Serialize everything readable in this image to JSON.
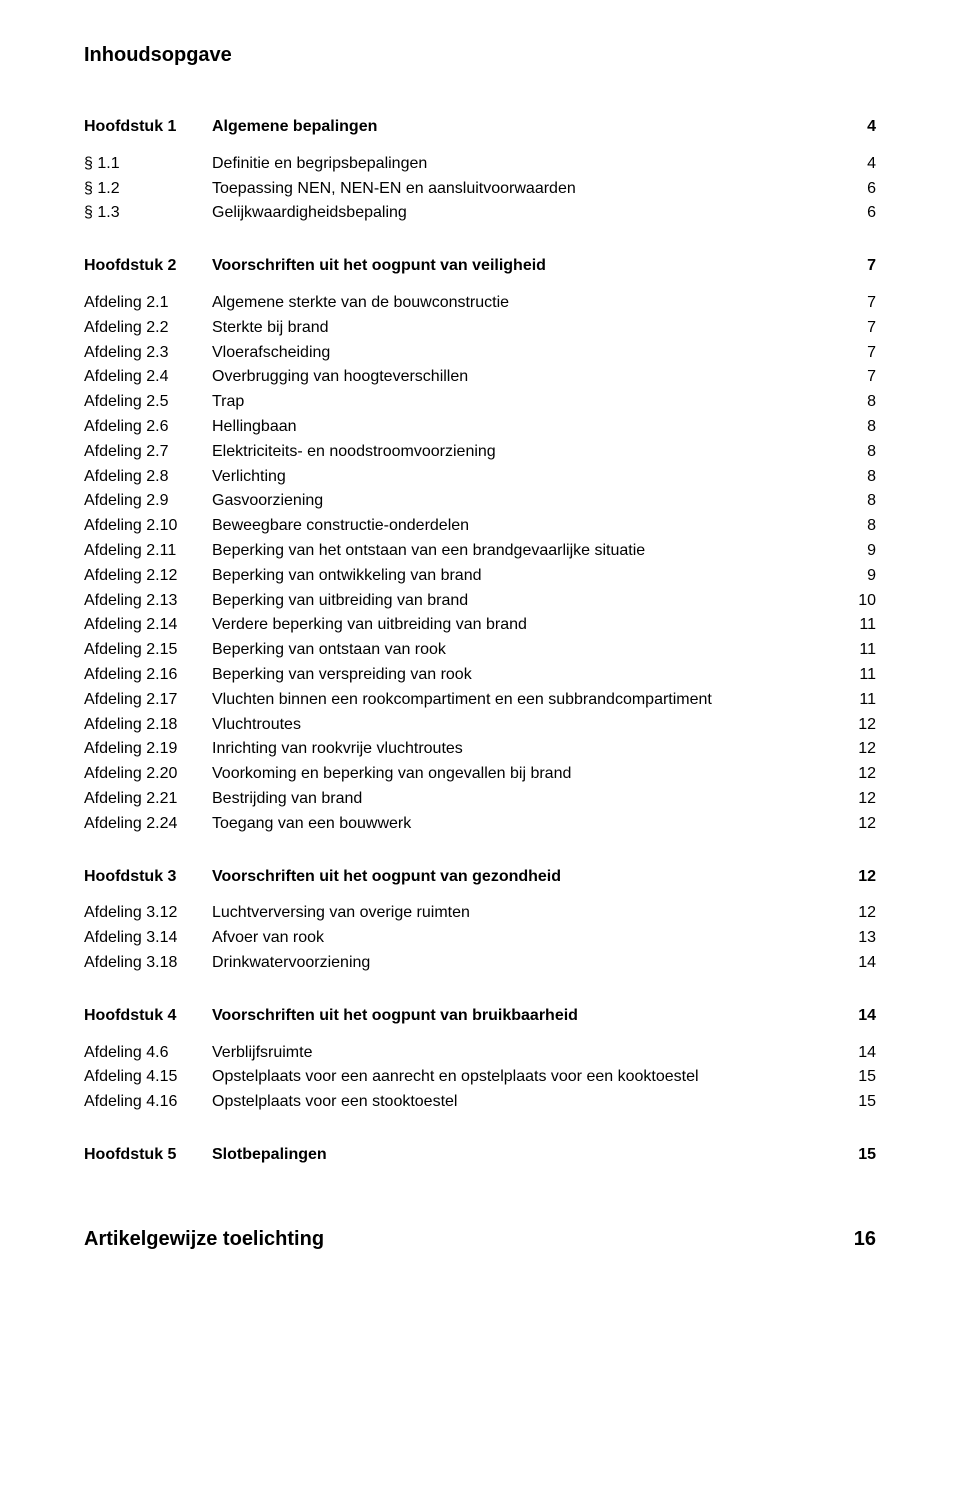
{
  "doc": {
    "title": "Inhoudsopgave",
    "font_family": "Arial",
    "font_size_body_pt": 12,
    "font_size_title_pt": 15,
    "text_color": "#000000",
    "background_color": "#ffffff"
  },
  "toc": [
    {
      "level": "chapter",
      "label": "Hoofdstuk 1",
      "text": "Algemene bepalingen",
      "page": 4
    },
    {
      "level": "section",
      "label": "§ 1.1",
      "text": "Definitie en begripsbepalingen",
      "page": 4
    },
    {
      "level": "section",
      "label": "§ 1.2",
      "text": "Toepassing NEN, NEN-EN en aansluitvoorwaarden",
      "page": 6
    },
    {
      "level": "section",
      "label": "§ 1.3",
      "text": "Gelijkwaardigheidsbepaling",
      "page": 6
    },
    {
      "level": "chapter",
      "label": "Hoofdstuk 2",
      "text": "Voorschriften uit het oogpunt van veiligheid",
      "page": 7
    },
    {
      "level": "afdeling",
      "label": "Afdeling 2.1",
      "text": "Algemene sterkte van de bouwconstructie",
      "page": 7
    },
    {
      "level": "afdeling",
      "label": "Afdeling 2.2",
      "text": "Sterkte bij brand",
      "page": 7
    },
    {
      "level": "afdeling",
      "label": "Afdeling 2.3",
      "text": "Vloerafscheiding",
      "page": 7
    },
    {
      "level": "afdeling",
      "label": "Afdeling 2.4",
      "text": "Overbrugging van hoogteverschillen",
      "page": 7
    },
    {
      "level": "afdeling",
      "label": "Afdeling 2.5",
      "text": "Trap",
      "page": 8
    },
    {
      "level": "afdeling",
      "label": "Afdeling 2.6",
      "text": "Hellingbaan",
      "page": 8
    },
    {
      "level": "afdeling",
      "label": "Afdeling 2.7",
      "text": "Elektriciteits- en noodstroomvoorziening",
      "page": 8
    },
    {
      "level": "afdeling",
      "label": "Afdeling 2.8",
      "text": "Verlichting",
      "page": 8
    },
    {
      "level": "afdeling",
      "label": "Afdeling 2.9",
      "text": "Gasvoorziening",
      "page": 8
    },
    {
      "level": "afdeling",
      "label": "Afdeling 2.10",
      "text": "Beweegbare constructie-onderdelen",
      "page": 8
    },
    {
      "level": "afdeling",
      "label": "Afdeling 2.11",
      "text": "Beperking van het ontstaan van een brandgevaarlijke situatie",
      "page": 9
    },
    {
      "level": "afdeling",
      "label": "Afdeling 2.12",
      "text": "Beperking van ontwikkeling van brand",
      "page": 9
    },
    {
      "level": "afdeling",
      "label": "Afdeling 2.13",
      "text": "Beperking van uitbreiding van brand",
      "page": 10
    },
    {
      "level": "afdeling",
      "label": "Afdeling 2.14",
      "text": "Verdere beperking van uitbreiding van brand",
      "page": 11
    },
    {
      "level": "afdeling",
      "label": "Afdeling 2.15",
      "text": "Beperking van ontstaan van rook",
      "page": 11
    },
    {
      "level": "afdeling",
      "label": "Afdeling 2.16",
      "text": "Beperking van verspreiding van rook",
      "page": 11
    },
    {
      "level": "afdeling",
      "label": "Afdeling 2.17",
      "text": "Vluchten binnen een rookcompartiment en een subbrandcompartiment",
      "page": 11
    },
    {
      "level": "afdeling",
      "label": "Afdeling 2.18",
      "text": "Vluchtroutes",
      "page": 12
    },
    {
      "level": "afdeling",
      "label": "Afdeling 2.19",
      "text": "Inrichting van rookvrije vluchtroutes",
      "page": 12
    },
    {
      "level": "afdeling",
      "label": "Afdeling 2.20",
      "text": "Voorkoming en beperking van ongevallen bij brand",
      "page": 12
    },
    {
      "level": "afdeling",
      "label": "Afdeling 2.21",
      "text": "Bestrijding van brand",
      "page": 12
    },
    {
      "level": "afdeling",
      "label": "Afdeling 2.24",
      "text": "Toegang van een bouwwerk",
      "page": 12
    },
    {
      "level": "chapter",
      "label": "Hoofdstuk 3",
      "text": "Voorschriften uit het oogpunt van gezondheid",
      "page": 12
    },
    {
      "level": "afdeling",
      "label": "Afdeling 3.12",
      "text": "Luchtverversing van overige ruimten",
      "page": 12
    },
    {
      "level": "afdeling",
      "label": "Afdeling 3.14",
      "text": "Afvoer van rook",
      "page": 13
    },
    {
      "level": "afdeling",
      "label": "Afdeling 3.18",
      "text": "Drinkwatervoorziening",
      "page": 14
    },
    {
      "level": "chapter",
      "label": "Hoofdstuk 4",
      "text": "Voorschriften uit het oogpunt van bruikbaarheid",
      "page": 14
    },
    {
      "level": "afdeling",
      "label": "Afdeling 4.6",
      "text": "Verblijfsruimte",
      "page": 14
    },
    {
      "level": "afdeling",
      "label": "Afdeling 4.15",
      "text": "Opstelplaats voor een aanrecht en opstelplaats voor een kooktoestel",
      "page": 15
    },
    {
      "level": "afdeling",
      "label": "Afdeling 4.16",
      "text": "Opstelplaats voor een stooktoestel",
      "page": 15
    },
    {
      "level": "chapter",
      "label": "Hoofdstuk 5",
      "text": "Slotbepalingen",
      "page": 15
    },
    {
      "level": "final",
      "label": "",
      "text": "Artikelgewijze toelichting",
      "page": 16
    }
  ]
}
